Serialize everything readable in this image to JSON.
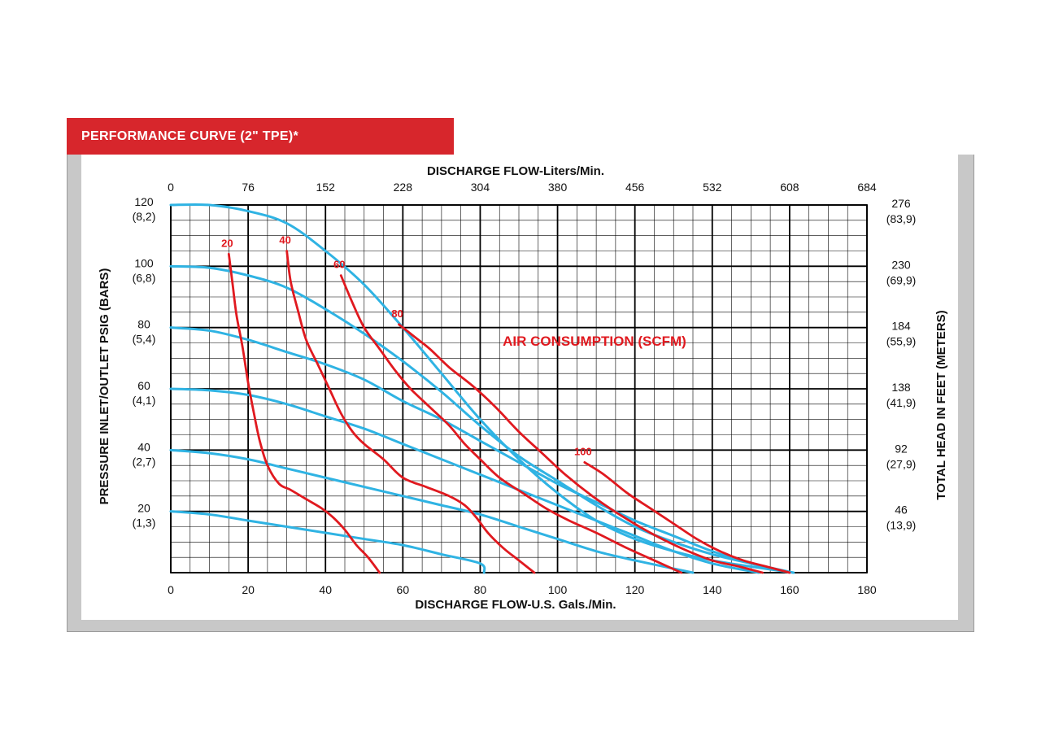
{
  "header": {
    "title": "PERFORMANCE CURVE (2\" TPE)*"
  },
  "colors": {
    "title_bar": "#d7262c",
    "pressure_curves": "#2fb3e3",
    "air_curves": "#e0191f",
    "grid": "#000000",
    "frame": "#c8c8c8"
  },
  "chart_data": {
    "type": "line",
    "title": "PERFORMANCE CURVE (2\" TPE)*",
    "xlabel": "DISCHARGE FLOW-U.S. Gals./Min.",
    "x2label": "DISCHARGE FLOW-Liters/Min.",
    "ylabel": "PRESSURE INLET/OUTLET PSIG (BARS)",
    "y2label": "TOTAL HEAD IN FEET (METERS)",
    "annotation": "AIR CONSUMPTION (SCFM)",
    "xlim": [
      0,
      180
    ],
    "ylim": [
      0,
      120
    ],
    "grid": true,
    "x_ticks": [
      "0",
      "20",
      "40",
      "60",
      "80",
      "100",
      "120",
      "140",
      "160",
      "180"
    ],
    "x2_ticks": [
      "0",
      "76",
      "152",
      "228",
      "304",
      "380",
      "456",
      "532",
      "608",
      "684"
    ],
    "y_ticks": [
      {
        "value": 120,
        "psi": "120",
        "bar": "(8,2)"
      },
      {
        "value": 100,
        "psi": "100",
        "bar": "(6,8)"
      },
      {
        "value": 80,
        "psi": "80",
        "bar": "(5,4)"
      },
      {
        "value": 60,
        "psi": "60",
        "bar": "(4,1)"
      },
      {
        "value": 40,
        "psi": "40",
        "bar": "(2,7)"
      },
      {
        "value": 20,
        "psi": "20",
        "bar": "(1,3)"
      }
    ],
    "y2_ticks": [
      {
        "value": 120,
        "ft": "276",
        "m": "(83,9)"
      },
      {
        "value": 100,
        "ft": "230",
        "m": "(69,9)"
      },
      {
        "value": 80,
        "ft": "184",
        "m": "(55,9)"
      },
      {
        "value": 60,
        "ft": "138",
        "m": "(41,9)"
      },
      {
        "value": 40,
        "ft": "92",
        "m": "(27,9)"
      },
      {
        "value": 20,
        "ft": "46",
        "m": "(13,9)"
      }
    ],
    "pressure_curves": [
      {
        "points": [
          [
            0,
            120
          ],
          [
            10,
            120
          ],
          [
            20,
            118
          ],
          [
            30,
            114
          ],
          [
            40,
            105
          ],
          [
            50,
            94
          ],
          [
            60,
            80
          ],
          [
            70,
            65
          ],
          [
            80,
            50
          ],
          [
            90,
            37
          ],
          [
            100,
            26
          ],
          [
            110,
            17
          ],
          [
            120,
            11
          ],
          [
            130,
            7
          ],
          [
            140,
            4
          ],
          [
            150,
            2
          ],
          [
            161,
            0
          ]
        ]
      },
      {
        "points": [
          [
            0,
            100
          ],
          [
            10,
            99.5
          ],
          [
            20,
            97
          ],
          [
            30,
            93
          ],
          [
            40,
            86
          ],
          [
            50,
            78
          ],
          [
            60,
            69
          ],
          [
            70,
            59
          ],
          [
            80,
            48
          ],
          [
            90,
            38
          ],
          [
            100,
            30
          ],
          [
            110,
            22
          ],
          [
            120,
            15
          ],
          [
            130,
            10
          ],
          [
            140,
            6
          ],
          [
            150,
            3
          ],
          [
            161,
            0
          ]
        ]
      },
      {
        "points": [
          [
            0,
            80
          ],
          [
            10,
            79
          ],
          [
            20,
            76
          ],
          [
            30,
            72
          ],
          [
            40,
            68
          ],
          [
            50,
            63
          ],
          [
            60,
            56
          ],
          [
            70,
            50
          ],
          [
            80,
            43
          ],
          [
            90,
            36
          ],
          [
            100,
            29
          ],
          [
            110,
            23
          ],
          [
            120,
            17
          ],
          [
            130,
            12
          ],
          [
            140,
            7
          ],
          [
            150,
            3
          ],
          [
            160,
            0
          ]
        ]
      },
      {
        "points": [
          [
            0,
            60
          ],
          [
            10,
            59.5
          ],
          [
            20,
            58
          ],
          [
            30,
            55
          ],
          [
            40,
            51
          ],
          [
            50,
            47
          ],
          [
            60,
            42
          ],
          [
            70,
            37
          ],
          [
            80,
            32
          ],
          [
            90,
            27
          ],
          [
            100,
            22
          ],
          [
            110,
            17
          ],
          [
            120,
            12
          ],
          [
            130,
            7
          ],
          [
            140,
            3
          ],
          [
            152,
            0
          ]
        ]
      },
      {
        "points": [
          [
            0,
            40
          ],
          [
            10,
            39
          ],
          [
            20,
            37
          ],
          [
            30,
            34
          ],
          [
            40,
            31
          ],
          [
            50,
            28
          ],
          [
            60,
            25
          ],
          [
            70,
            22
          ],
          [
            80,
            19
          ],
          [
            90,
            15
          ],
          [
            100,
            11
          ],
          [
            110,
            7
          ],
          [
            120,
            4
          ],
          [
            135,
            0
          ]
        ]
      },
      {
        "points": [
          [
            0,
            20
          ],
          [
            10,
            19
          ],
          [
            20,
            17
          ],
          [
            30,
            15
          ],
          [
            40,
            13
          ],
          [
            50,
            11
          ],
          [
            60,
            9
          ],
          [
            70,
            6
          ],
          [
            80,
            3
          ],
          [
            81,
            0
          ]
        ]
      }
    ],
    "air_consumption_curves": [
      {
        "label": "20",
        "points": [
          [
            15,
            104
          ],
          [
            16,
            94
          ],
          [
            17,
            84
          ],
          [
            18.5,
            74
          ],
          [
            20,
            62
          ],
          [
            21.5,
            52
          ],
          [
            23,
            43
          ],
          [
            25,
            35
          ],
          [
            28,
            29
          ],
          [
            31,
            27
          ],
          [
            35,
            24
          ],
          [
            39,
            21
          ],
          [
            42,
            18
          ],
          [
            45,
            14
          ],
          [
            48,
            9
          ],
          [
            51,
            5
          ],
          [
            54,
            0
          ]
        ]
      },
      {
        "label": "40",
        "points": [
          [
            30,
            105
          ],
          [
            31,
            95
          ],
          [
            33,
            85
          ],
          [
            35,
            76
          ],
          [
            38,
            68
          ],
          [
            41,
            60
          ],
          [
            44,
            52
          ],
          [
            47,
            46
          ],
          [
            50,
            42
          ],
          [
            55,
            37
          ],
          [
            60,
            31
          ],
          [
            66,
            28
          ],
          [
            72,
            25
          ],
          [
            76,
            22
          ],
          [
            79,
            18
          ],
          [
            82,
            13
          ],
          [
            86,
            8
          ],
          [
            90,
            4
          ],
          [
            94,
            0
          ]
        ]
      },
      {
        "label": "60",
        "points": [
          [
            44,
            97
          ],
          [
            47,
            88
          ],
          [
            50,
            80
          ],
          [
            54,
            73
          ],
          [
            58,
            66
          ],
          [
            62,
            60
          ],
          [
            67,
            54
          ],
          [
            72,
            48
          ],
          [
            76,
            42
          ],
          [
            80,
            37
          ],
          [
            85,
            31
          ],
          [
            91,
            26
          ],
          [
            97,
            21
          ],
          [
            103,
            17
          ],
          [
            110,
            13
          ],
          [
            118,
            8
          ],
          [
            125,
            4
          ],
          [
            132,
            0
          ]
        ]
      },
      {
        "label": "80",
        "points": [
          [
            59,
            81
          ],
          [
            63,
            77
          ],
          [
            67,
            73
          ],
          [
            72,
            67
          ],
          [
            78,
            61
          ],
          [
            84,
            54
          ],
          [
            90,
            46
          ],
          [
            96,
            39
          ],
          [
            102,
            32
          ],
          [
            109,
            25
          ],
          [
            116,
            19
          ],
          [
            124,
            13
          ],
          [
            132,
            8
          ],
          [
            140,
            4
          ],
          [
            147,
            2
          ],
          [
            153,
            0
          ]
        ]
      },
      {
        "label": "100",
        "points": [
          [
            107,
            36
          ],
          [
            112,
            32
          ],
          [
            118,
            26
          ],
          [
            124,
            21
          ],
          [
            130,
            16
          ],
          [
            136,
            11
          ],
          [
            142,
            7
          ],
          [
            148,
            4
          ],
          [
            154,
            2
          ],
          [
            160,
            0
          ]
        ]
      }
    ]
  }
}
